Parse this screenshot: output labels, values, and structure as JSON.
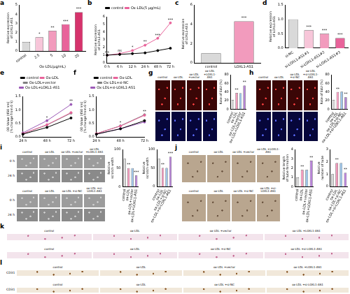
{
  "chart_data": [
    {
      "panel": "a",
      "type": "bar",
      "categories": [
        "control",
        "2.5",
        "5",
        "10",
        "20"
      ],
      "values": [
        1,
        1.5,
        2.2,
        2.9,
        4.2
      ],
      "colors": [
        "#d9d9d9",
        "#f7c6d9",
        "#f29bbd",
        "#e8639a",
        "#d6336c"
      ],
      "xlabel": "Ox-LDL(μg/mL)",
      "ylabel": "Relative expression of LOXL1-AS1",
      "ylim": [
        0,
        5
      ],
      "yticks": [
        0,
        1,
        2,
        3,
        4,
        5
      ],
      "significance": [
        null,
        "*",
        "**",
        "***",
        "***"
      ],
      "grid": false
    },
    {
      "panel": "b",
      "type": "line",
      "categories": [
        "0 h",
        "6 h",
        "12 h",
        "24 h",
        "48 h",
        "72 h"
      ],
      "series": [
        {
          "name": "control",
          "color": "#000000",
          "marker": "circle",
          "values": [
            1,
            1.1,
            1.2,
            1.3,
            1.6,
            1.9
          ]
        },
        {
          "name": "Ox-LDL(5 μg/mL)",
          "color": "#e8639a",
          "marker": "circle",
          "values": [
            1,
            1.2,
            1.6,
            2.3,
            3.2,
            5.2
          ]
        }
      ],
      "ylabel": "Relative expression of LOXL1-AS1",
      "ylim": [
        0,
        6
      ],
      "yticks": [
        0,
        1,
        2,
        3,
        4,
        5,
        6
      ],
      "significance": [
        "ns",
        "ns",
        "*",
        "**",
        "***",
        "***"
      ],
      "legend": "top",
      "grid": false
    },
    {
      "panel": "c",
      "type": "bar",
      "categories": [
        "control",
        "LOXL1-AS1"
      ],
      "values": [
        1,
        4.3
      ],
      "colors": [
        "#d9d9d9",
        "#f29bbd"
      ],
      "ylabel": "Relative expression of LOXL1-AS1",
      "ylim": [
        0,
        6
      ],
      "yticks": [
        0,
        2,
        4,
        6
      ],
      "significance": [
        null,
        "***"
      ],
      "grid": false
    },
    {
      "panel": "d",
      "type": "bar",
      "categories": [
        "si-NC",
        "si-LOXL1-AS1#1",
        "si-LOXL1-AS1#2",
        "si-LOXL1-AS1#3"
      ],
      "values": [
        1,
        0.62,
        0.5,
        0.35
      ],
      "colors": [
        "#d9d9d9",
        "#f7c6d9",
        "#f29bbd",
        "#e8639a"
      ],
      "ylabel": "Relative expression of LOXL1-AS1",
      "ylim": [
        0,
        1.5
      ],
      "yticks": [
        {
          "value": 0,
          "label": "0.0"
        },
        0.5,
        {
          "value": 1,
          "label": "1.0"
        },
        1.5
      ],
      "significance": [
        null,
        "***",
        "***",
        "***"
      ],
      "grid": false
    },
    {
      "panel": "e",
      "type": "line",
      "categories": [
        "24 h",
        "48 h",
        "72 h"
      ],
      "series": [
        {
          "name": "control",
          "color": "#000000",
          "marker": "circle",
          "values": [
            0.1,
            0.35,
            0.7
          ]
        },
        {
          "name": "Ox-LDL",
          "color": "#e8639a",
          "marker": "circle",
          "values": [
            0.12,
            0.45,
            0.9
          ]
        },
        {
          "name": "Ox-LDL+vector",
          "color": "#7f7f7f",
          "marker": "circle",
          "values": [
            0.12,
            0.44,
            0.88
          ]
        },
        {
          "name": "Ox-LDL+LOXL1-AS1",
          "color": "#9b59b6",
          "marker": "circle",
          "values": [
            0.15,
            0.6,
            1.2
          ]
        }
      ],
      "ylabel": "OD Value (450 nm) (% change from 0 h)",
      "ylim": [
        0,
        1.5
      ],
      "yticks": [
        {
          "value": 0,
          "label": "0.0"
        },
        0.5,
        {
          "value": 1,
          "label": "1.0"
        },
        1.5
      ],
      "significance": [
        null,
        "*",
        "**"
      ],
      "legend": "top",
      "grid": false
    },
    {
      "panel": "f",
      "type": "line",
      "categories": [
        "24 h",
        "48 h",
        "72 h"
      ],
      "series": [
        {
          "name": "control",
          "color": "#000000",
          "marker": "circle",
          "values": [
            0.1,
            0.3,
            0.6
          ]
        },
        {
          "name": "Ox-LDL",
          "color": "#e8639a",
          "marker": "circle",
          "values": [
            0.12,
            0.4,
            0.8
          ]
        },
        {
          "name": "Ox-LDL+si-NC",
          "color": "#7f7f7f",
          "marker": "circle",
          "values": [
            0.12,
            0.41,
            0.82
          ]
        },
        {
          "name": "Ox-LDL+si-LOXL1-AS1",
          "color": "#9b59b6",
          "marker": "circle",
          "values": [
            0.1,
            0.3,
            0.55
          ]
        }
      ],
      "ylabel": "OD Value (450 nm) (% change from 0 h)",
      "ylim": [
        0,
        1.5
      ],
      "yticks": [
        {
          "value": 0,
          "label": "0.0"
        },
        0.5,
        {
          "value": 1,
          "label": "1.0"
        },
        1.5
      ],
      "significance": [
        null,
        "*",
        "**"
      ],
      "legend": "top",
      "grid": false
    },
    {
      "type": "bar",
      "categories": [
        "control",
        "ox-LDL",
        "ox-LDL+vector",
        "ox-LDL+LOXL1-AS1"
      ],
      "values": [
        22,
        38,
        37,
        55
      ],
      "colors": [
        "#d9d9d9",
        "#f29bbd",
        "#9ec5e8",
        "#b784d6"
      ],
      "ylabel": "Rate of EdU (%)",
      "ylim": [
        0,
        80
      ],
      "yticks": [
        0,
        20,
        40,
        60,
        80
      ],
      "significance": [
        null,
        "**",
        null,
        "**"
      ],
      "grid": false
    },
    {
      "type": "bar",
      "categories": [
        "control",
        "ox-LDL",
        "ox-LDL+si-NC",
        "ox-LDL+si-LOXL1-AS1"
      ],
      "values": [
        22,
        40,
        41,
        28
      ],
      "colors": [
        "#d9d9d9",
        "#f29bbd",
        "#9ec5e8",
        "#b784d6"
      ],
      "ylabel": "Rate of EdU (%)",
      "ylim": [
        0,
        80
      ],
      "yticks": [
        0,
        20,
        40,
        60,
        80
      ],
      "significance": [
        null,
        "**",
        null,
        "**"
      ],
      "grid": false
    },
    {
      "type": "bar",
      "categories": [
        "control",
        "ox-LDL",
        "ox-LDL+vector",
        "ox-LDL+LOXL1-AS1"
      ],
      "values": [
        75,
        50,
        50,
        30
      ],
      "colors": [
        "#d9d9d9",
        "#f29bbd",
        "#9ec5e8",
        "#b784d6"
      ],
      "ylabel": "Relative scratch width",
      "ylim": [
        0,
        100
      ],
      "yticks": [
        0,
        50,
        100
      ],
      "significance": [
        null,
        "**",
        null,
        "***"
      ],
      "grid": false
    },
    {
      "type": "bar",
      "categories": [
        "control",
        "ox-LDL",
        "ox-LDL+si-NC",
        "ox-LDL+si-LOXL1-AS1"
      ],
      "values": [
        75,
        50,
        50,
        80
      ],
      "colors": [
        "#d9d9d9",
        "#f29bbd",
        "#9ec5e8",
        "#b784d6"
      ],
      "ylabel": "Relative scratch width",
      "ylim": [
        0,
        100
      ],
      "yticks": [
        0,
        50,
        100
      ],
      "significance": [
        null,
        "**",
        null,
        "***"
      ],
      "grid": false
    },
    {
      "type": "bar",
      "categories": [
        "control",
        "ox-LDL",
        "ox-LDL+vector",
        "ox-LDL+LOXL1-AS1"
      ],
      "values": [
        1,
        1.8,
        1.8,
        2.8
      ],
      "colors": [
        "#d9d9d9",
        "#f29bbd",
        "#9ec5e8",
        "#b784d6"
      ],
      "ylabel": "Relative length of tube formation",
      "ylim": [
        0,
        4
      ],
      "yticks": [
        0,
        1,
        2,
        3,
        4
      ],
      "significance": [
        null,
        "**",
        null,
        "**"
      ],
      "grid": false
    },
    {
      "type": "bar",
      "categories": [
        "control",
        "ox-LDL",
        "ox-LDL+si-NC",
        "ox-LDL+si-LOXL1-AS1"
      ],
      "values": [
        1,
        1.9,
        1.9,
        1.1
      ],
      "colors": [
        "#d9d9d9",
        "#f29bbd",
        "#9ec5e8",
        "#b784d6"
      ],
      "ylabel": "Relative number of tube",
      "ylim": [
        0,
        3
      ],
      "yticks": [
        0,
        1,
        2,
        3
      ],
      "significance": [
        null,
        "**",
        null,
        "**"
      ],
      "grid": false
    }
  ],
  "image_panels": [
    {
      "panel": "g",
      "blocks": [
        {
          "columns": [
            "control",
            "ox-LDL",
            "ox-LDL +vector",
            "ox-LDL +LOXL1-AS1"
          ],
          "rows": [
            null,
            null
          ]
        }
      ]
    },
    {
      "panel": "h",
      "blocks": [
        {
          "columns": [
            "control",
            "ox-LDL",
            "ox-LDL +si-NC",
            "ox-LDL +si-LOXL1-AS1"
          ],
          "rows": [
            null,
            null
          ]
        }
      ]
    },
    {
      "panel": "i",
      "blocks": [
        {
          "columns": [
            "control",
            "ox-LDL",
            "ox-LDL +vector",
            "ox-LDL +LOXL1-AS1"
          ],
          "rows": [
            "0 h",
            "24 h"
          ]
        },
        {
          "columns": [
            "control",
            "ox-LDL",
            "ox-LDL +si-NC",
            "ox-LDL +si-LOXL1-AS1"
          ],
          "rows": [
            "0 h",
            "24 h"
          ]
        }
      ]
    },
    {
      "panel": "j",
      "blocks": [
        {
          "columns": [
            "control",
            "ox-LDL",
            "ox-LDL +vector",
            "ox-LDL +LOXL1-AS1"
          ],
          "rows": [
            null
          ]
        },
        {
          "columns": [
            "control",
            "ox-LDL",
            "ox-LDL +si-NC",
            "ox-LDL +si-LOXL1-AS1"
          ],
          "rows": [
            null
          ]
        }
      ]
    },
    {
      "panel": "k",
      "blocks": [
        {
          "columns": [
            "control",
            "ox-LDL",
            "ox-LDL +vector",
            "ox-LDL +LOXL1-AS1"
          ],
          "rows": [
            null
          ]
        },
        {
          "columns": [
            "control",
            "ox-LDL",
            "ox-LDL +si-NC",
            "ox-LDL +si-LOXL1-AS1"
          ],
          "rows": [
            null
          ]
        }
      ]
    },
    {
      "panel": "l",
      "blocks": [
        {
          "columns": [
            "control",
            "ox-LDL",
            "ox-LDL +vector",
            "ox-LDL +LOXL1-AS1"
          ],
          "rows": [
            "CD31"
          ]
        },
        {
          "columns": [
            "control",
            "ox-LDL",
            "ox-LDL +si-NC",
            "ox-LDL +si-LOXL1-AS1"
          ],
          "rows": [
            "CD31"
          ]
        }
      ]
    }
  ]
}
